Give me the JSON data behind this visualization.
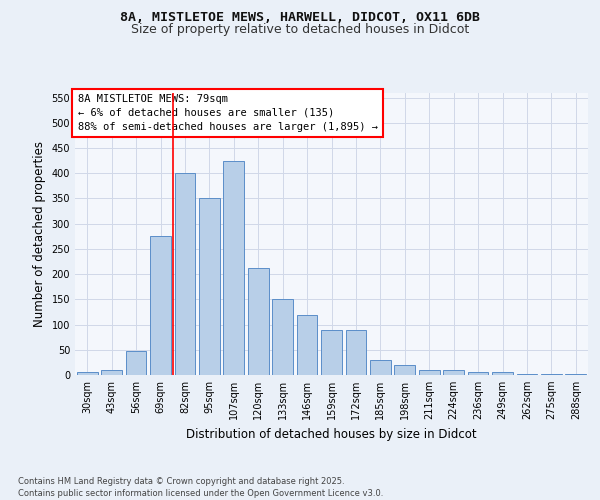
{
  "title_line1": "8A, MISTLETOE MEWS, HARWELL, DIDCOT, OX11 6DB",
  "title_line2": "Size of property relative to detached houses in Didcot",
  "xlabel": "Distribution of detached houses by size in Didcot",
  "ylabel": "Number of detached properties",
  "categories": [
    "30sqm",
    "43sqm",
    "56sqm",
    "69sqm",
    "82sqm",
    "95sqm",
    "107sqm",
    "120sqm",
    "133sqm",
    "146sqm",
    "159sqm",
    "172sqm",
    "185sqm",
    "198sqm",
    "211sqm",
    "224sqm",
    "236sqm",
    "249sqm",
    "262sqm",
    "275sqm",
    "288sqm"
  ],
  "values": [
    5,
    10,
    48,
    275,
    400,
    350,
    425,
    213,
    150,
    118,
    90,
    90,
    30,
    20,
    10,
    10,
    5,
    5,
    2,
    2,
    2
  ],
  "bar_color": "#b8cfe8",
  "bar_edge_color": "#5b8ec9",
  "grid_color": "#d0d8e8",
  "annotation_box_color": "#ff0000",
  "annotation_text": "8A MISTLETOE MEWS: 79sqm\n← 6% of detached houses are smaller (135)\n88% of semi-detached houses are larger (1,895) →",
  "vline_x_index": 4,
  "vline_color": "#ff0000",
  "ylim": [
    0,
    560
  ],
  "yticks": [
    0,
    50,
    100,
    150,
    200,
    250,
    300,
    350,
    400,
    450,
    500,
    550
  ],
  "footnote": "Contains HM Land Registry data © Crown copyright and database right 2025.\nContains public sector information licensed under the Open Government Licence v3.0.",
  "bg_color": "#eaf0f8",
  "plot_bg_color": "#f4f7fc",
  "title_fontsize": 9.5,
  "title2_fontsize": 9,
  "axis_label_fontsize": 8.5,
  "tick_fontsize": 7,
  "annotation_fontsize": 7.5,
  "footnote_fontsize": 6
}
